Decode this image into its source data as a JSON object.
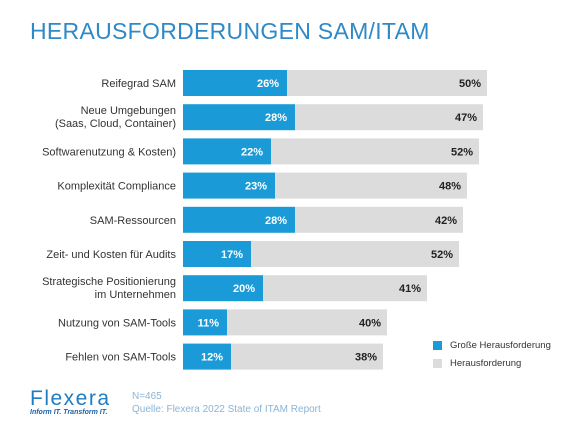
{
  "title": "HERAUSFORDERUNGEN SAM/ITAM",
  "chart_data": {
    "type": "bar",
    "orientation": "horizontal",
    "stacked": true,
    "categories": [
      [
        "Reifegrad SAM"
      ],
      [
        "Neue Umgebungen",
        "(Saas, Cloud, Container)"
      ],
      [
        "Softwarenutzung & Kosten)"
      ],
      [
        "Komplexität Compliance"
      ],
      [
        "SAM-Ressourcen"
      ],
      [
        "Zeit- und Kosten für Audits"
      ],
      [
        "Strategische Positionierung",
        "im Unternehmen"
      ],
      [
        "Nutzung von SAM-Tools"
      ],
      [
        "Fehlen von SAM-Tools"
      ]
    ],
    "series": [
      {
        "name": "Große Herausforderung",
        "color": "#1a9ad6",
        "values": [
          26,
          28,
          22,
          23,
          28,
          17,
          20,
          11,
          12
        ],
        "labels": [
          "26%",
          "28%",
          "22%",
          "23%",
          "28%",
          "17%",
          "20%",
          "11%",
          "12%"
        ]
      },
      {
        "name": "Herausforderung",
        "color": "#dcdcdc",
        "values": [
          50,
          47,
          52,
          48,
          42,
          52,
          41,
          40,
          38
        ],
        "labels": [
          "50%",
          "47%",
          "52%",
          "48%",
          "42%",
          "52%",
          "41%",
          "40%",
          "38%"
        ]
      }
    ],
    "xlim": [
      0,
      80
    ],
    "grid": false,
    "legend_position": "bottom-right"
  },
  "legend": {
    "items": [
      {
        "label": "Große Herausforderung",
        "color": "#1a9ad6"
      },
      {
        "label": "Herausforderung",
        "color": "#dcdcdc"
      }
    ]
  },
  "logo": {
    "wordmark": "Flexera",
    "tagline": "Inform IT. Transform IT."
  },
  "source": {
    "n": "N=465",
    "text": "Quelle: Flexera 2022 State of ITAM Report"
  }
}
